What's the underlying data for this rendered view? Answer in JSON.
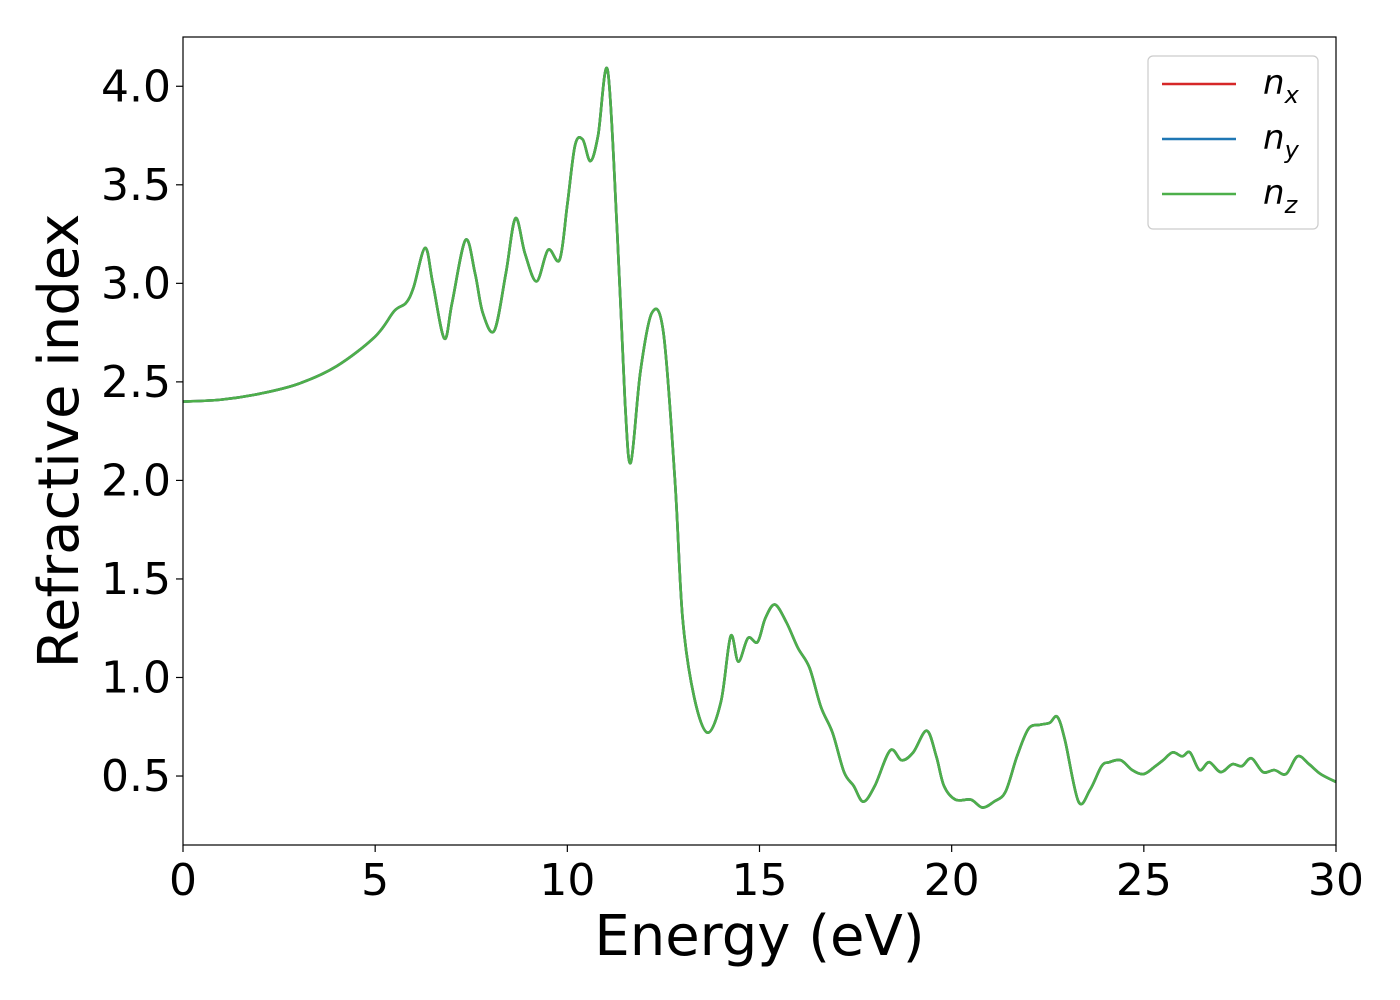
{
  "chart_data": {
    "type": "line",
    "title": "",
    "xlabel": "Energy (eV)",
    "ylabel": "Refractive index",
    "xlim": [
      0,
      30
    ],
    "ylim": [
      0.15,
      4.25
    ],
    "xticks": [
      0,
      5,
      10,
      15,
      20,
      25,
      30
    ],
    "xtick_labels": [
      "0",
      "5",
      "10",
      "15",
      "20",
      "25",
      "30"
    ],
    "yticks": [
      0.5,
      1.0,
      1.5,
      2.0,
      2.5,
      3.0,
      3.5,
      4.0
    ],
    "ytick_labels": [
      "0.5",
      "1.0",
      "1.5",
      "2.0",
      "2.5",
      "3.0",
      "3.5",
      "4.0"
    ],
    "grid": false,
    "legend_position": "top-right",
    "x": [
      0,
      1,
      2,
      3,
      4,
      5,
      5.5,
      5.8,
      6.0,
      6.3,
      6.5,
      6.8,
      7.0,
      7.35,
      7.6,
      7.8,
      8.1,
      8.4,
      8.65,
      8.9,
      9.2,
      9.5,
      9.8,
      10.0,
      10.2,
      10.4,
      10.6,
      10.8,
      11.05,
      11.3,
      11.5,
      11.65,
      11.9,
      12.2,
      12.5,
      12.8,
      13.0,
      13.3,
      13.65,
      14.0,
      14.25,
      14.45,
      14.7,
      14.95,
      15.15,
      15.4,
      15.7,
      16.0,
      16.3,
      16.6,
      16.9,
      17.2,
      17.45,
      17.7,
      18.0,
      18.4,
      18.7,
      19.0,
      19.35,
      19.6,
      19.8,
      20.1,
      20.5,
      20.8,
      21.1,
      21.4,
      21.7,
      22.0,
      22.3,
      22.55,
      22.75,
      22.95,
      23.3,
      23.6,
      23.9,
      24.1,
      24.4,
      24.7,
      25.0,
      25.3,
      25.5,
      25.75,
      26.0,
      26.2,
      26.45,
      26.7,
      27.0,
      27.3,
      27.55,
      27.8,
      28.1,
      28.4,
      28.7,
      29.0,
      29.3,
      29.6,
      30.0
    ],
    "series": [
      {
        "name": "n_x",
        "name_main": "n",
        "name_sub": "x",
        "color": "#d62728",
        "values": [
          2.4,
          2.41,
          2.44,
          2.49,
          2.58,
          2.73,
          2.86,
          2.9,
          2.98,
          3.18,
          3.0,
          2.72,
          2.9,
          3.22,
          3.05,
          2.85,
          2.76,
          3.05,
          3.33,
          3.15,
          3.01,
          3.17,
          3.12,
          3.4,
          3.7,
          3.73,
          3.62,
          3.75,
          4.08,
          3.25,
          2.4,
          2.09,
          2.55,
          2.85,
          2.75,
          2.0,
          1.3,
          0.9,
          0.72,
          0.88,
          1.21,
          1.08,
          1.2,
          1.18,
          1.3,
          1.37,
          1.28,
          1.15,
          1.05,
          0.85,
          0.72,
          0.52,
          0.45,
          0.37,
          0.45,
          0.63,
          0.58,
          0.62,
          0.73,
          0.6,
          0.45,
          0.38,
          0.38,
          0.34,
          0.37,
          0.42,
          0.6,
          0.74,
          0.76,
          0.77,
          0.8,
          0.68,
          0.37,
          0.43,
          0.55,
          0.57,
          0.58,
          0.53,
          0.51,
          0.55,
          0.58,
          0.62,
          0.6,
          0.62,
          0.53,
          0.57,
          0.52,
          0.56,
          0.55,
          0.59,
          0.52,
          0.53,
          0.51,
          0.6,
          0.56,
          0.51,
          0.47
        ]
      },
      {
        "name": "n_y",
        "name_main": "n",
        "name_sub": "y",
        "color": "#1f77b4",
        "values": [
          2.4,
          2.41,
          2.44,
          2.49,
          2.58,
          2.73,
          2.86,
          2.9,
          2.98,
          3.18,
          3.0,
          2.72,
          2.9,
          3.22,
          3.05,
          2.85,
          2.76,
          3.05,
          3.33,
          3.15,
          3.01,
          3.17,
          3.12,
          3.4,
          3.7,
          3.73,
          3.62,
          3.75,
          4.08,
          3.25,
          2.4,
          2.09,
          2.55,
          2.85,
          2.75,
          2.0,
          1.3,
          0.9,
          0.72,
          0.88,
          1.21,
          1.08,
          1.2,
          1.18,
          1.3,
          1.37,
          1.28,
          1.15,
          1.05,
          0.85,
          0.72,
          0.52,
          0.45,
          0.37,
          0.45,
          0.63,
          0.58,
          0.62,
          0.73,
          0.6,
          0.45,
          0.38,
          0.38,
          0.34,
          0.37,
          0.42,
          0.6,
          0.74,
          0.76,
          0.77,
          0.8,
          0.68,
          0.37,
          0.43,
          0.55,
          0.57,
          0.58,
          0.53,
          0.51,
          0.55,
          0.58,
          0.62,
          0.6,
          0.62,
          0.53,
          0.57,
          0.52,
          0.56,
          0.55,
          0.59,
          0.52,
          0.53,
          0.51,
          0.6,
          0.56,
          0.51,
          0.47
        ]
      },
      {
        "name": "n_z",
        "name_main": "n",
        "name_sub": "z",
        "color": "#4daf4a",
        "values": [
          2.4,
          2.41,
          2.44,
          2.49,
          2.58,
          2.73,
          2.86,
          2.9,
          2.98,
          3.18,
          3.0,
          2.72,
          2.9,
          3.22,
          3.05,
          2.85,
          2.76,
          3.05,
          3.33,
          3.15,
          3.01,
          3.17,
          3.12,
          3.4,
          3.7,
          3.73,
          3.62,
          3.75,
          4.08,
          3.25,
          2.4,
          2.09,
          2.55,
          2.85,
          2.75,
          2.0,
          1.3,
          0.9,
          0.72,
          0.88,
          1.21,
          1.08,
          1.2,
          1.18,
          1.3,
          1.37,
          1.28,
          1.15,
          1.05,
          0.85,
          0.72,
          0.52,
          0.45,
          0.37,
          0.45,
          0.63,
          0.58,
          0.62,
          0.73,
          0.6,
          0.45,
          0.38,
          0.38,
          0.34,
          0.37,
          0.42,
          0.6,
          0.74,
          0.76,
          0.77,
          0.8,
          0.68,
          0.37,
          0.43,
          0.55,
          0.57,
          0.58,
          0.53,
          0.51,
          0.55,
          0.58,
          0.62,
          0.6,
          0.62,
          0.53,
          0.57,
          0.52,
          0.56,
          0.55,
          0.59,
          0.52,
          0.53,
          0.51,
          0.6,
          0.56,
          0.51,
          0.47
        ]
      }
    ]
  }
}
